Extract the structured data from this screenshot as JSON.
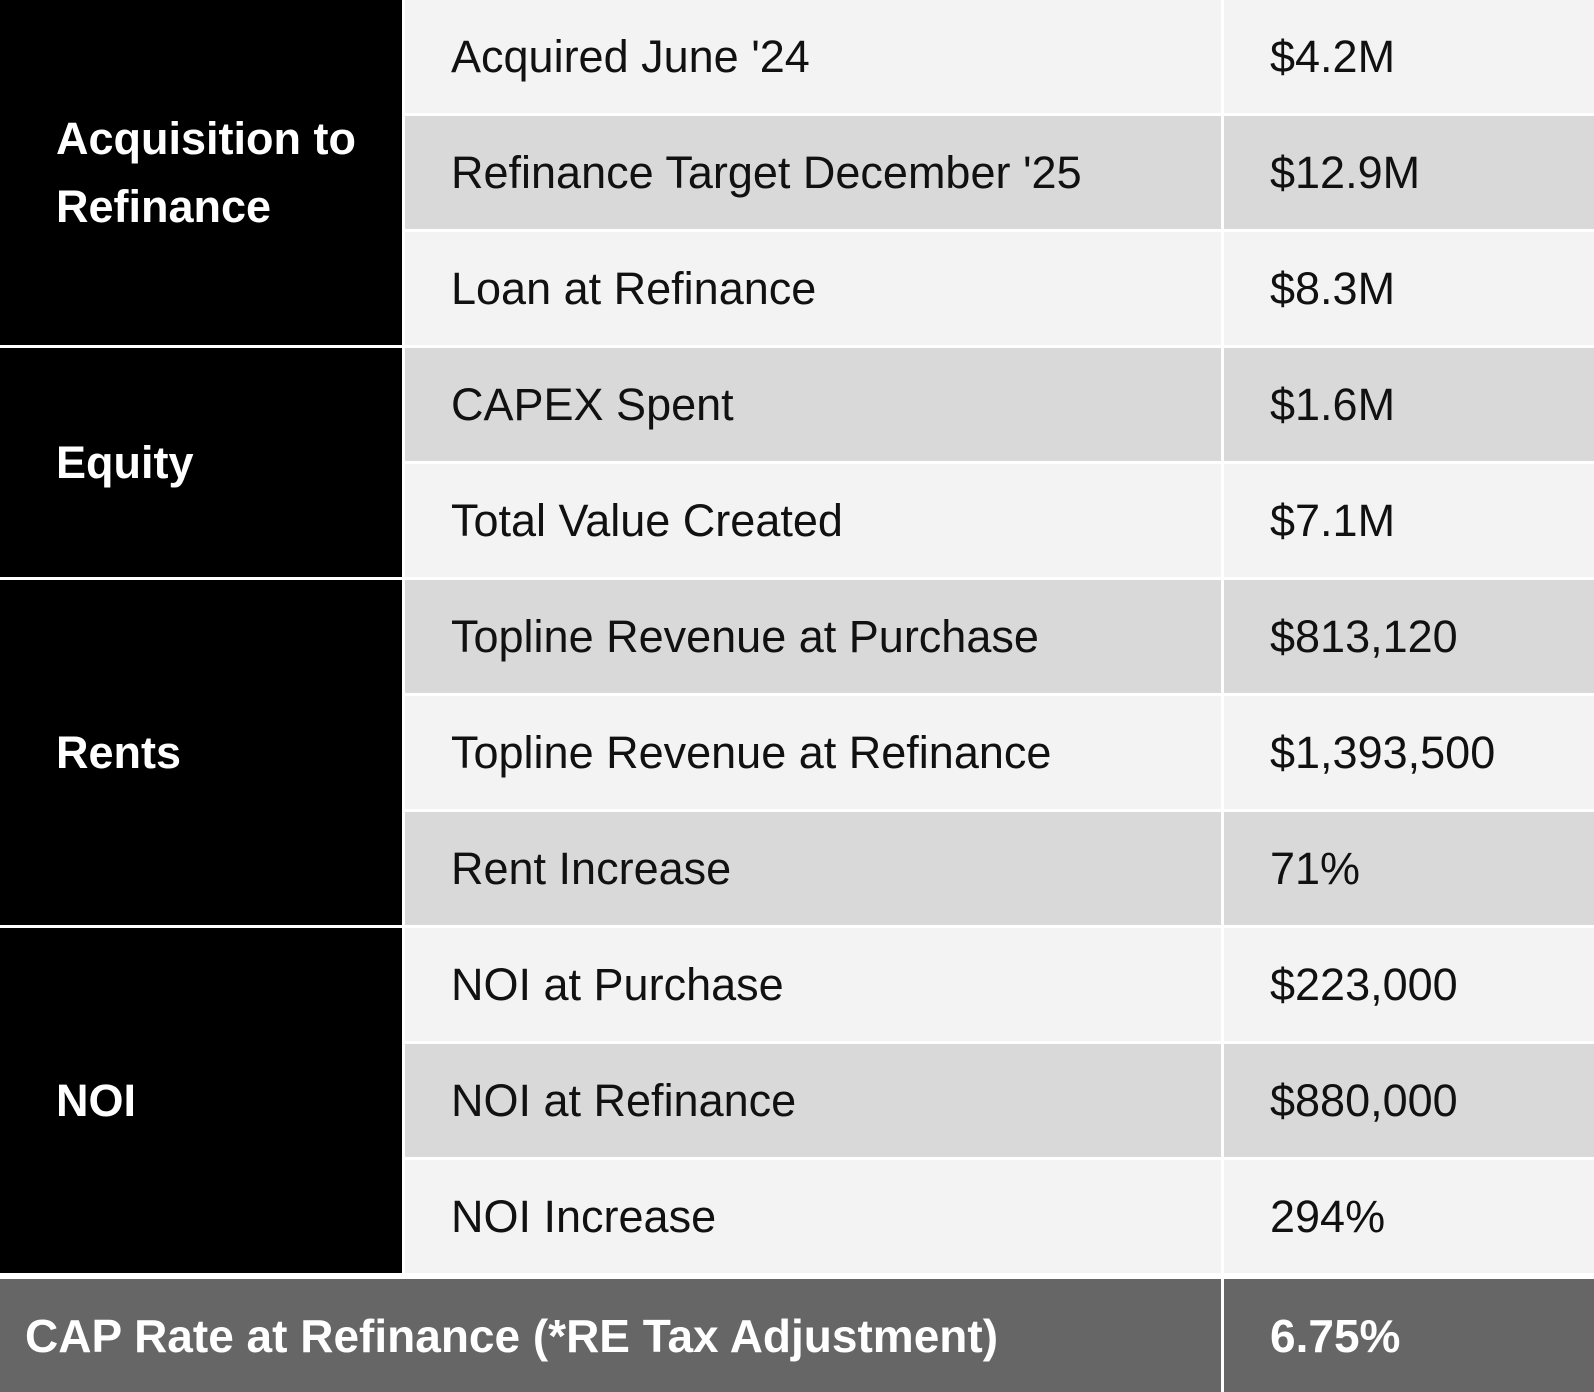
{
  "groups": [
    {
      "label": "Acquisition to Refinance",
      "rows": [
        {
          "label": "Acquired June '24",
          "value": "$4.2M"
        },
        {
          "label": "Refinance Target December '25",
          "value": "$12.9M"
        },
        {
          "label": "Loan at Refinance",
          "value": "$8.3M"
        }
      ]
    },
    {
      "label": "Equity",
      "rows": [
        {
          "label": "CAPEX Spent",
          "value": "$1.6M"
        },
        {
          "label": "Total Value Created",
          "value": "$7.1M"
        }
      ]
    },
    {
      "label": "Rents",
      "rows": [
        {
          "label": "Topline Revenue at Purchase",
          "value": "$813,120"
        },
        {
          "label": "Topline Revenue at Refinance",
          "value": "$1,393,500"
        },
        {
          "label": "Rent Increase",
          "value": "71%"
        }
      ]
    },
    {
      "label": "NOI",
      "rows": [
        {
          "label": "NOI at Purchase",
          "value": "$223,000"
        },
        {
          "label": "NOI at Refinance",
          "value": "$880,000"
        },
        {
          "label": "NOI Increase",
          "value": "294%"
        }
      ]
    }
  ],
  "footer": {
    "label": "CAP Rate at Refinance (*RE Tax Adjustment)",
    "value": "6.75%"
  }
}
